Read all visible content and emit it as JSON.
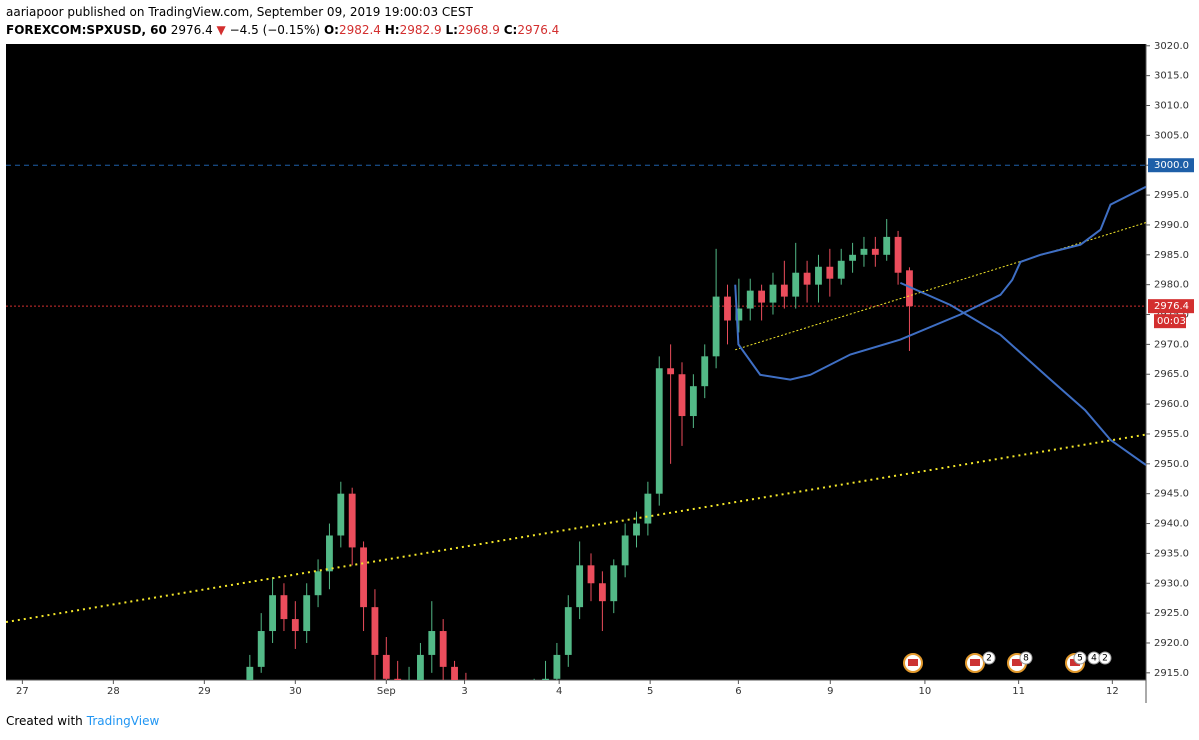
{
  "header": {
    "publisher": "aariapoor published on TradingView.com, September 09, 2019 19:00:03 CEST",
    "symbol": "FOREXCOM:SPXUSD, 60",
    "last": "2976.4",
    "arrow": "▼",
    "change": "−4.5 (−0.15%)",
    "o_label": "O:",
    "open": "2982.4",
    "h_label": "H:",
    "high": "2982.9",
    "l_label": "L:",
    "low": "2968.9",
    "c_label": "C:",
    "close": "2976.4"
  },
  "footer": {
    "created": "Created with",
    "brand": "TradingView"
  },
  "badges": [
    "2",
    "8",
    "5",
    "4",
    "2"
  ],
  "chart_data": {
    "type": "candlestick",
    "x": [
      2.5,
      2.625,
      2.75,
      2.875,
      3.0,
      3.125,
      3.25,
      3.375,
      3.5,
      3.625,
      3.75,
      3.875,
      4.0,
      4.125,
      4.25,
      4.375,
      4.5,
      4.625,
      4.75,
      4.875,
      5.0,
      5.125,
      5.25,
      5.375,
      5.5,
      5.625,
      5.75,
      5.875,
      6.0,
      6.125,
      6.25,
      6.375,
      6.5,
      6.625,
      6.75,
      6.875,
      7.0,
      7.125,
      7.25,
      7.375,
      7.5,
      7.625,
      7.75,
      7.875,
      8.0,
      8.125,
      8.25,
      8.375,
      8.5,
      8.625,
      8.75,
      8.875,
      9.0,
      9.125,
      9.25,
      9.375,
      9.5,
      9.625,
      9.75
    ],
    "open": [
      2913,
      2916,
      2922,
      2928,
      2924,
      2922,
      2928,
      2932,
      2938,
      2945,
      2936,
      2926,
      2918,
      2914,
      2912,
      2913,
      2918,
      2922,
      2916,
      2912,
      2910,
      2909,
      2910,
      2908,
      2909,
      2910,
      2912,
      2914,
      2918,
      2926,
      2933,
      2930,
      2927,
      2933,
      2938,
      2940,
      2945,
      2966,
      2965,
      2958,
      2963,
      2968,
      2978,
      2974,
      2976,
      2979,
      2977,
      2980,
      2978,
      2982,
      2980,
      2983,
      2981,
      2984,
      2985,
      2986,
      2985,
      2988,
      2982.4
    ],
    "high": [
      2918,
      2925,
      2931,
      2930,
      2927,
      2930,
      2934,
      2940,
      2947,
      2946,
      2937,
      2929,
      2921,
      2917,
      2916,
      2920,
      2927,
      2924,
      2917,
      2915,
      2912,
      2913,
      2912,
      2911,
      2913,
      2914,
      2917,
      2920,
      2928,
      2937,
      2935,
      2932,
      2934,
      2940,
      2942,
      2947,
      2968,
      2970,
      2967,
      2965,
      2970,
      2986,
      2980,
      2981,
      2981,
      2980,
      2982,
      2984,
      2987,
      2984,
      2985,
      2986,
      2986,
      2987,
      2988,
      2988,
      2991,
      2989,
      2982.9
    ],
    "low": [
      2911,
      2915,
      2920,
      2922,
      2919,
      2920,
      2926,
      2929,
      2936,
      2933,
      2922,
      2912,
      2910,
      2909,
      2909,
      2911,
      2915,
      2913,
      2909,
      2907,
      2906,
      2906,
      2905,
      2905,
      2906,
      2908,
      2910,
      2912,
      2916,
      2924,
      2927,
      2922,
      2925,
      2931,
      2936,
      2938,
      2943,
      2950,
      2953,
      2956,
      2961,
      2966,
      2970,
      2972,
      2974,
      2974,
      2975,
      2976,
      2976,
      2977,
      2977,
      2978,
      2980,
      2982,
      2983,
      2983,
      2984,
      2980,
      2968.9
    ],
    "close": [
      2916,
      2922,
      2928,
      2924,
      2922,
      2928,
      2932,
      2938,
      2945,
      2936,
      2926,
      2918,
      2914,
      2912,
      2913,
      2918,
      2922,
      2916,
      2912,
      2910,
      2909,
      2910,
      2908,
      2909,
      2910,
      2912,
      2914,
      2918,
      2926,
      2933,
      2930,
      2927,
      2933,
      2938,
      2940,
      2945,
      2966,
      2965,
      2958,
      2963,
      2968,
      2978,
      2974,
      2976,
      2979,
      2977,
      2980,
      2978,
      2982,
      2980,
      2983,
      2981,
      2984,
      2985,
      2986,
      2985,
      2988,
      2982,
      2976.4
    ],
    "up_color": "#53b987",
    "down_color": "#eb4d5c",
    "xlim": [
      -0.18,
      12.35
    ],
    "ylim": [
      2913.8,
      3020.3
    ],
    "xticks": [
      {
        "value": 0,
        "label": "27"
      },
      {
        "value": 1,
        "label": "28"
      },
      {
        "value": 2,
        "label": "29"
      },
      {
        "value": 3,
        "label": "30"
      },
      {
        "value": 4,
        "label": "Sep"
      },
      {
        "value": 4.86,
        "label": "3"
      },
      {
        "value": 5.9,
        "label": "4"
      },
      {
        "value": 6.9,
        "label": "5"
      },
      {
        "value": 7.87,
        "label": "6"
      },
      {
        "value": 8.88,
        "label": "9"
      },
      {
        "value": 9.92,
        "label": "10"
      },
      {
        "value": 10.95,
        "label": "11"
      },
      {
        "value": 11.98,
        "label": "12"
      }
    ],
    "yticks": [
      {
        "value": 2915,
        "label": "2915.0"
      },
      {
        "value": 2920,
        "label": "2920.0"
      },
      {
        "value": 2925,
        "label": "2925.0"
      },
      {
        "value": 2930,
        "label": "2930.0"
      },
      {
        "value": 2935,
        "label": "2935.0"
      },
      {
        "value": 2940,
        "label": "2940.0"
      },
      {
        "value": 2945,
        "label": "2945.0"
      },
      {
        "value": 2950,
        "label": "2950.0"
      },
      {
        "value": 2955,
        "label": "2955.0"
      },
      {
        "value": 2960,
        "label": "2960.0"
      },
      {
        "value": 2965,
        "label": "2965.0"
      },
      {
        "value": 2970,
        "label": "2970.0"
      },
      {
        "value": 2975,
        "label": "2975.0"
      },
      {
        "value": 2980,
        "label": "2980.0"
      },
      {
        "value": 2985,
        "label": "2985.0"
      },
      {
        "value": 2990,
        "label": "2990.0"
      },
      {
        "value": 2995,
        "label": "2995.0"
      },
      {
        "value": 3000,
        "label": "3000.0"
      },
      {
        "value": 3005,
        "label": "3005.0"
      },
      {
        "value": 3010,
        "label": "3010.0"
      },
      {
        "value": 3015,
        "label": "3015.0"
      },
      {
        "value": 3020,
        "label": "3020.0"
      }
    ],
    "hlines": [
      {
        "value": 3000,
        "label": "3000.0",
        "color": "#1e5fa8",
        "style": "dashed"
      },
      {
        "value": 2976.4,
        "label": "2976.4",
        "color": "#d32f2f",
        "style": "dotted",
        "countdown": "00:03"
      }
    ],
    "trendlines": [
      {
        "color": "#f5e829",
        "width": 2,
        "x": [
          -0.18,
          12.35
        ],
        "y": [
          2923.5,
          2954.9
        ]
      },
      {
        "color": "#f5e829",
        "width": 1,
        "x": [
          7.835,
          12.35
        ],
        "y": [
          2969.1,
          2990.4
        ]
      }
    ],
    "curves": [
      {
        "color": "#3f6fc4",
        "x": [
          7.835,
          7.87,
          8.11,
          8.44,
          8.66,
          9.1,
          9.65,
          10.31,
          10.75,
          10.88,
          10.97,
          11.19,
          11.63,
          11.85,
          11.96,
          12.35
        ],
        "y": [
          2980.0,
          2970,
          2964.9,
          2964.1,
          2964.9,
          2968.3,
          2970.8,
          2975,
          2978.3,
          2980.8,
          2983.8,
          2985,
          2986.7,
          2989.2,
          2993.4,
          2996.4
        ]
      },
      {
        "color": "#3f6fc4",
        "x": [
          9.65,
          10.2,
          10.75,
          11.3,
          11.68,
          11.96,
          12.35
        ],
        "y": [
          2980.3,
          2976.6,
          2971.6,
          2964.1,
          2959,
          2954,
          2949.8
        ]
      }
    ]
  }
}
